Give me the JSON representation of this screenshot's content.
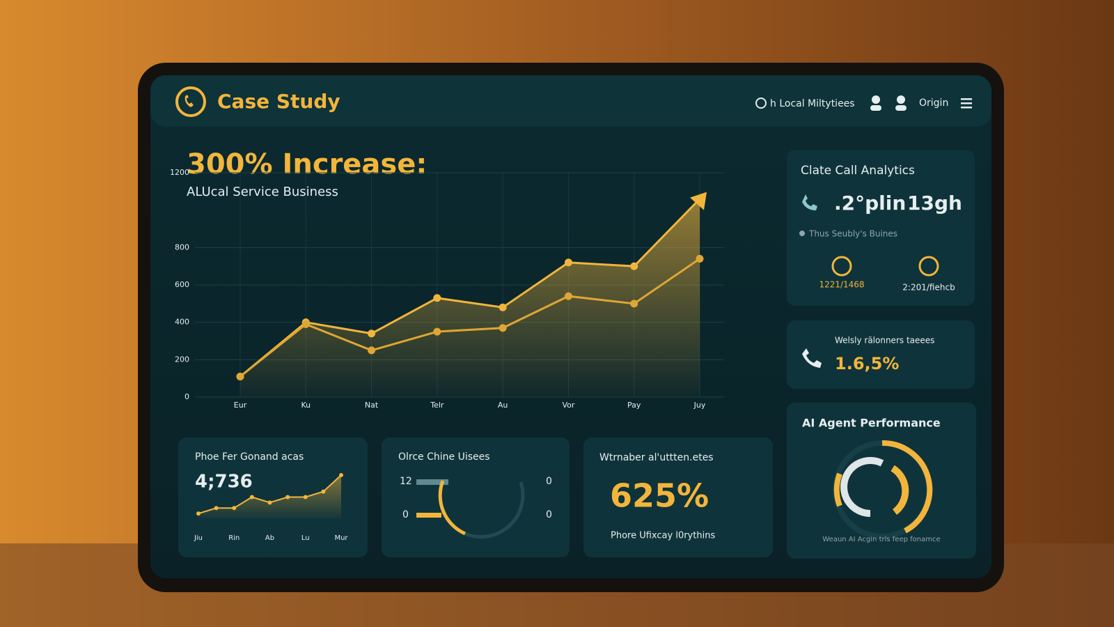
{
  "header": {
    "title": "Case Study",
    "nav": [
      "h Local Miltytiees",
      "Origin"
    ]
  },
  "hero": {
    "title": "300% Increase:",
    "subtitle": "ALUcal Service Business"
  },
  "chart_data": {
    "type": "line",
    "categories": [
      "Eur",
      "Ku",
      "Nat",
      "Telr",
      "Au",
      "Vor",
      "Pay",
      "Juy"
    ],
    "series": [
      {
        "color": "#f2b53c",
        "values": [
          110,
          400,
          340,
          530,
          480,
          720,
          700,
          1060
        ]
      },
      {
        "color": "#e0a634",
        "values": [
          110,
          390,
          250,
          350,
          370,
          540,
          500,
          740
        ]
      }
    ],
    "ylim": [
      0,
      1200
    ],
    "yticks": [
      0,
      200,
      400,
      600,
      800,
      1200
    ],
    "grid": true
  },
  "cards": [
    {
      "title": "Phoe Fer Gonand acas",
      "value": "4;736",
      "x_labels": [
        "Jiu",
        "Rin",
        "Ab",
        "Lu",
        "Mur"
      ],
      "values": [
        1,
        2,
        2,
        4,
        3,
        4,
        4,
        5,
        8
      ]
    },
    {
      "title": "Olrce Chine Uisees",
      "labels": [
        "12",
        "0",
        "0",
        "0"
      ]
    },
    {
      "title": "Wtrnaber al'uttten.etes",
      "value": "625%",
      "caption": "Phore Ufixcay l0rythins"
    }
  ],
  "side": {
    "analytics": {
      "title": "Clate Call Analytics",
      "stats": [
        ".2°plin",
        "13gh"
      ],
      "legend": "Thus Seubly's Buines",
      "counts": [
        "1221/1468",
        "2:201/fiehcb"
      ]
    },
    "weekly": {
      "title": "Welsly rälonners taeees",
      "value": "1.6,5%"
    },
    "agent": {
      "title": "AI Agent Performance",
      "caption": "Weaun AI Acgin trls feep fonamce"
    }
  }
}
